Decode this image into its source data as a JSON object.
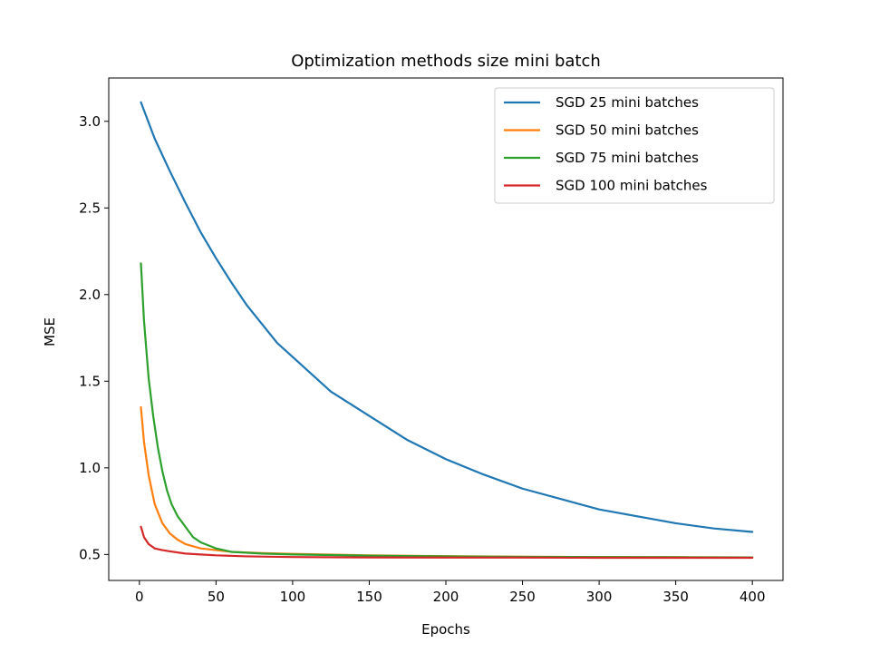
{
  "chart_data": {
    "type": "line",
    "title": "Optimization methods size mini batch",
    "xlabel": "Epochs",
    "ylabel": "MSE",
    "xlim": [
      -20,
      420
    ],
    "ylim": [
      0.35,
      3.25
    ],
    "xticks": [
      0,
      50,
      100,
      150,
      200,
      250,
      300,
      350,
      400
    ],
    "yticks": [
      0.5,
      1.0,
      1.5,
      2.0,
      2.5,
      3.0
    ],
    "xtick_labels": [
      "0",
      "50",
      "100",
      "150",
      "200",
      "250",
      "300",
      "350",
      "400"
    ],
    "ytick_labels": [
      "0.5",
      "1.0",
      "1.5",
      "2.0",
      "2.5",
      "3.0"
    ],
    "grid": false,
    "legend_position": "top-right",
    "series": [
      {
        "name": "SGD 25 mini batches",
        "color": "#1f77b4",
        "x": [
          1,
          10,
          20,
          30,
          40,
          50,
          60,
          70,
          80,
          90,
          100,
          125,
          150,
          175,
          200,
          225,
          250,
          275,
          300,
          325,
          350,
          375,
          400
        ],
        "values": [
          3.11,
          2.9,
          2.71,
          2.53,
          2.36,
          2.21,
          2.07,
          1.94,
          1.83,
          1.72,
          1.64,
          1.44,
          1.3,
          1.16,
          1.05,
          0.96,
          0.88,
          0.82,
          0.76,
          0.72,
          0.68,
          0.65,
          0.63
        ]
      },
      {
        "name": "SGD 50 mini batches",
        "color": "#ff7f0e",
        "x": [
          1,
          3,
          6,
          10,
          15,
          20,
          25,
          30,
          40,
          50,
          60,
          80,
          100,
          150,
          200,
          250,
          300,
          350,
          400
        ],
        "values": [
          1.35,
          1.15,
          0.96,
          0.79,
          0.68,
          0.62,
          0.585,
          0.56,
          0.535,
          0.525,
          0.515,
          0.508,
          0.503,
          0.495,
          0.49,
          0.487,
          0.485,
          0.484,
          0.483
        ]
      },
      {
        "name": "SGD 75 mini batches",
        "color": "#2ca02c",
        "x": [
          1,
          3,
          6,
          9,
          12,
          15,
          18,
          21,
          25,
          30,
          35,
          40,
          50,
          60,
          80,
          100,
          150,
          200,
          250,
          300,
          350,
          400
        ],
        "values": [
          2.18,
          1.85,
          1.52,
          1.3,
          1.12,
          0.98,
          0.87,
          0.79,
          0.72,
          0.66,
          0.6,
          0.57,
          0.535,
          0.515,
          0.505,
          0.5,
          0.493,
          0.489,
          0.486,
          0.485,
          0.484,
          0.483
        ]
      },
      {
        "name": "SGD 100 mini batches",
        "color": "#d62728",
        "x": [
          1,
          3,
          6,
          10,
          15,
          20,
          30,
          40,
          50,
          70,
          100,
          150,
          200,
          250,
          300,
          350,
          400
        ],
        "values": [
          0.66,
          0.6,
          0.56,
          0.535,
          0.525,
          0.518,
          0.505,
          0.5,
          0.495,
          0.489,
          0.485,
          0.483,
          0.482,
          0.482,
          0.481,
          0.481,
          0.481
        ]
      }
    ]
  }
}
